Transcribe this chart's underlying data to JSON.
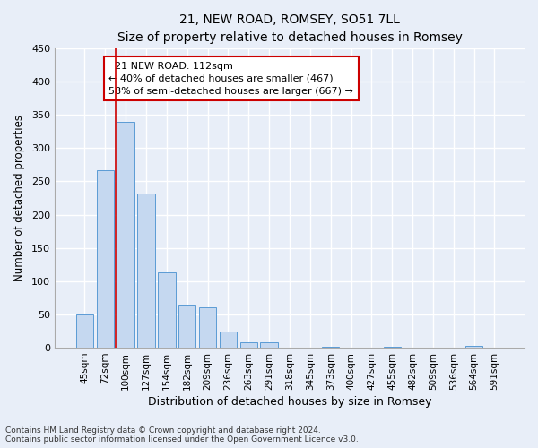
{
  "title": "21, NEW ROAD, ROMSEY, SO51 7LL",
  "subtitle": "Size of property relative to detached houses in Romsey",
  "xlabel": "Distribution of detached houses by size in Romsey",
  "ylabel": "Number of detached properties",
  "bar_color": "#c5d8f0",
  "bar_edge_color": "#5b9bd5",
  "categories": [
    "45sqm",
    "72sqm",
    "100sqm",
    "127sqm",
    "154sqm",
    "182sqm",
    "209sqm",
    "236sqm",
    "263sqm",
    "291sqm",
    "318sqm",
    "345sqm",
    "373sqm",
    "400sqm",
    "427sqm",
    "455sqm",
    "482sqm",
    "509sqm",
    "536sqm",
    "564sqm",
    "591sqm"
  ],
  "values": [
    50,
    267,
    340,
    232,
    113,
    65,
    61,
    25,
    8,
    8,
    0,
    0,
    2,
    0,
    0,
    2,
    0,
    0,
    0,
    3,
    0
  ],
  "ylim": [
    0,
    450
  ],
  "yticks": [
    0,
    50,
    100,
    150,
    200,
    250,
    300,
    350,
    400,
    450
  ],
  "vline_x_index": 2,
  "annotation_line1": "21 NEW ROAD: 112sqm",
  "annotation_line2": "← 40% of detached houses are smaller (467)",
  "annotation_line3": "58% of semi-detached houses are larger (667) →",
  "annotation_box_facecolor": "#ffffff",
  "annotation_border_color": "#cc0000",
  "vline_color": "#cc0000",
  "footnote1": "Contains HM Land Registry data © Crown copyright and database right 2024.",
  "footnote2": "Contains public sector information licensed under the Open Government Licence v3.0.",
  "background_color": "#e8eef8",
  "grid_color": "#ffffff"
}
